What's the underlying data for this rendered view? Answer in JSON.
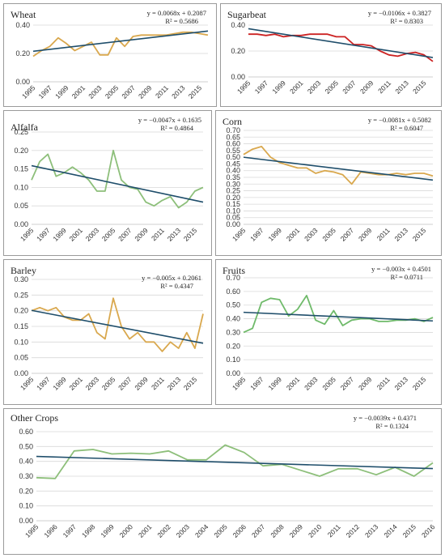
{
  "colors": {
    "trend": "#1f4e6b",
    "wheat": "#d9a84e",
    "sugarbeet": "#cc2222",
    "alfalfa": "#8dbf7a",
    "corn": "#d9a84e",
    "barley": "#d9a84e",
    "fruits": "#6fba6a",
    "other": "#8dbf7a",
    "grid": "#d9d9d9",
    "axis": "#bfbfbf"
  },
  "chart_data": [
    {
      "type": "line",
      "title": "Wheat",
      "equation": "y = 0.0068x + 0.2087",
      "r2": "R² = 0.5686",
      "x": [
        1995,
        1996,
        1997,
        1998,
        1999,
        2000,
        2001,
        2002,
        2003,
        2004,
        2005,
        2006,
        2007,
        2008,
        2009,
        2010,
        2011,
        2012,
        2013,
        2014,
        2015,
        2016
      ],
      "x_tick_labels": [
        "1995",
        "1997",
        "1999",
        "2001",
        "2003",
        "2005",
        "2007",
        "2009",
        "2011",
        "2013",
        "2015"
      ],
      "values": [
        0.18,
        0.22,
        0.25,
        0.31,
        0.27,
        0.22,
        0.25,
        0.28,
        0.19,
        0.19,
        0.31,
        0.25,
        0.32,
        0.33,
        0.33,
        0.33,
        0.33,
        0.34,
        0.35,
        0.35,
        0.34,
        0.33
      ],
      "trend": {
        "slope": 0.0068,
        "intercept": 0.2087
      },
      "ylim": [
        0,
        0.4
      ],
      "yticks": [
        "0.00",
        "0.20",
        "0.40"
      ],
      "ytick_values": [
        0,
        0.2,
        0.4
      ],
      "color": "wheat"
    },
    {
      "type": "line",
      "title": "Sugarbeat",
      "equation": "y = −0.0106x + 0.3827",
      "r2": "R² = 0.8303",
      "x": [
        1995,
        1996,
        1997,
        1998,
        1999,
        2000,
        2001,
        2002,
        2003,
        2004,
        2005,
        2006,
        2007,
        2008,
        2009,
        2010,
        2011,
        2012,
        2013,
        2014,
        2015,
        2016
      ],
      "x_tick_labels": [
        "1995",
        "1997",
        "1999",
        "2001",
        "2003",
        "2005",
        "2007",
        "2009",
        "2011",
        "2013",
        "2015"
      ],
      "values": [
        0.33,
        0.33,
        0.32,
        0.33,
        0.31,
        0.32,
        0.32,
        0.33,
        0.33,
        0.33,
        0.31,
        0.31,
        0.25,
        0.25,
        0.24,
        0.2,
        0.17,
        0.16,
        0.18,
        0.19,
        0.17,
        0.12
      ],
      "trend": {
        "slope": -0.0106,
        "intercept": 0.3827
      },
      "ylim": [
        0,
        0.4
      ],
      "yticks": [
        "0.00",
        "0.20",
        "0.40"
      ],
      "ytick_values": [
        0,
        0.2,
        0.4
      ],
      "color": "sugarbeet"
    },
    {
      "type": "line",
      "title": "Alfalfa",
      "equation": "y = −0.0047x + 0.1635",
      "r2": "R² = 0.4864",
      "x": [
        1995,
        1996,
        1997,
        1998,
        1999,
        2000,
        2001,
        2002,
        2003,
        2004,
        2005,
        2006,
        2007,
        2008,
        2009,
        2010,
        2011,
        2012,
        2013,
        2014,
        2015,
        2016
      ],
      "x_tick_labels": [
        "1995",
        "1997",
        "1999",
        "2001",
        "2003",
        "2005",
        "2007",
        "2009",
        "2011",
        "2013",
        "2015"
      ],
      "values": [
        0.12,
        0.17,
        0.19,
        0.13,
        0.14,
        0.155,
        0.14,
        0.12,
        0.09,
        0.09,
        0.2,
        0.12,
        0.1,
        0.095,
        0.06,
        0.05,
        0.065,
        0.075,
        0.045,
        0.06,
        0.09,
        0.1
      ],
      "trend": {
        "slope": -0.0047,
        "intercept": 0.1635
      },
      "ylim": [
        0,
        0.25
      ],
      "yticks": [
        "0.00",
        "0.05",
        "0.10",
        "0.15",
        "0.20",
        "0.25"
      ],
      "ytick_values": [
        0,
        0.05,
        0.1,
        0.15,
        0.2,
        0.25
      ],
      "color": "alfalfa"
    },
    {
      "type": "line",
      "title": "Corn",
      "equation": "y = −0.0081x + 0.5082",
      "r2": "R² = 0.6047",
      "x": [
        1995,
        1996,
        1997,
        1998,
        1999,
        2000,
        2001,
        2002,
        2003,
        2004,
        2005,
        2006,
        2007,
        2008,
        2009,
        2010,
        2011,
        2012,
        2013,
        2014,
        2015,
        2016
      ],
      "x_tick_labels": [
        "1995",
        "1997",
        "1999",
        "2001",
        "2003",
        "2005",
        "2007",
        "2009",
        "2011",
        "2013",
        "2015"
      ],
      "values": [
        0.52,
        0.56,
        0.58,
        0.5,
        0.46,
        0.44,
        0.42,
        0.42,
        0.38,
        0.4,
        0.39,
        0.37,
        0.3,
        0.39,
        0.38,
        0.37,
        0.37,
        0.38,
        0.37,
        0.38,
        0.38,
        0.36
      ],
      "trend": {
        "slope": -0.0081,
        "intercept": 0.5082
      },
      "ylim": [
        0,
        0.7
      ],
      "yticks": [
        "0.00",
        "0.05",
        "0.10",
        "0.15",
        "0.20",
        "0.25",
        "0.30",
        "0.35",
        "0.40",
        "0.45",
        "0.50",
        "0.55",
        "0.60",
        "0.65",
        "0.70"
      ],
      "ytick_values": [
        0,
        0.05,
        0.1,
        0.15,
        0.2,
        0.25,
        0.3,
        0.35,
        0.4,
        0.45,
        0.5,
        0.55,
        0.6,
        0.65,
        0.7
      ],
      "color": "corn"
    },
    {
      "type": "line",
      "title": "Barley",
      "equation": "y = −0.005x + 0.2061",
      "r2": "R² = 0.4347",
      "x": [
        1995,
        1996,
        1997,
        1998,
        1999,
        2000,
        2001,
        2002,
        2003,
        2004,
        2005,
        2006,
        2007,
        2008,
        2009,
        2010,
        2011,
        2012,
        2013,
        2014,
        2015,
        2016
      ],
      "x_tick_labels": [
        "1995",
        "1997",
        "1999",
        "2001",
        "2003",
        "2005",
        "2007",
        "2009",
        "2011",
        "2013",
        "2015"
      ],
      "values": [
        0.2,
        0.21,
        0.2,
        0.21,
        0.18,
        0.17,
        0.17,
        0.19,
        0.13,
        0.11,
        0.24,
        0.15,
        0.11,
        0.13,
        0.1,
        0.1,
        0.07,
        0.1,
        0.08,
        0.13,
        0.08,
        0.19
      ],
      "trend": {
        "slope": -0.005,
        "intercept": 0.2061
      },
      "ylim": [
        0,
        0.3
      ],
      "yticks": [
        "0.00",
        "0.05",
        "0.10",
        "0.15",
        "0.20",
        "0.25",
        "0.30"
      ],
      "ytick_values": [
        0,
        0.05,
        0.1,
        0.15,
        0.2,
        0.25,
        0.3
      ],
      "color": "barley"
    },
    {
      "type": "line",
      "title": "Fruits",
      "equation": "y = −0.003x + 0.4501",
      "r2": "R² = 0.0711",
      "x": [
        1995,
        1996,
        1997,
        1998,
        1999,
        2000,
        2001,
        2002,
        2003,
        2004,
        2005,
        2006,
        2007,
        2008,
        2009,
        2010,
        2011,
        2012,
        2013,
        2014,
        2015,
        2016
      ],
      "x_tick_labels": [
        "1995",
        "1997",
        "1999",
        "2001",
        "2003",
        "2005",
        "2007",
        "2009",
        "2011",
        "2013",
        "2015"
      ],
      "values": [
        0.3,
        0.33,
        0.52,
        0.55,
        0.54,
        0.42,
        0.47,
        0.57,
        0.39,
        0.36,
        0.46,
        0.35,
        0.39,
        0.4,
        0.4,
        0.38,
        0.38,
        0.39,
        0.39,
        0.4,
        0.38,
        0.41
      ],
      "trend": {
        "slope": -0.003,
        "intercept": 0.4501
      },
      "ylim": [
        0,
        0.7
      ],
      "yticks": [
        "0.00",
        "0.10",
        "0.20",
        "0.30",
        "0.40",
        "0.50",
        "0.60",
        "0.70"
      ],
      "ytick_values": [
        0,
        0.1,
        0.2,
        0.3,
        0.4,
        0.5,
        0.6,
        0.7
      ],
      "color": "fruits"
    },
    {
      "type": "line",
      "title": "Other Crops",
      "equation": "y = −0.0039x + 0.4371",
      "r2": "R² = 0.1324",
      "x": [
        1995,
        1996,
        1997,
        1998,
        1999,
        2000,
        2001,
        2002,
        2003,
        2004,
        2005,
        2006,
        2007,
        2008,
        2009,
        2010,
        2011,
        2012,
        2013,
        2014,
        2015,
        2016
      ],
      "x_tick_labels": [
        "1995",
        "1996",
        "1997",
        "1998",
        "1999",
        "2000",
        "2001",
        "2002",
        "2003",
        "2004",
        "2005",
        "2006",
        "2007",
        "2008",
        "2009",
        "2010",
        "2011",
        "2012",
        "2013",
        "2014",
        "2015",
        "2016"
      ],
      "values": [
        0.29,
        0.285,
        0.47,
        0.48,
        0.45,
        0.455,
        0.45,
        0.47,
        0.41,
        0.41,
        0.51,
        0.46,
        0.37,
        0.38,
        0.34,
        0.3,
        0.35,
        0.35,
        0.31,
        0.36,
        0.3,
        0.39
      ],
      "trend": {
        "slope": -0.0039,
        "intercept": 0.4371
      },
      "ylim": [
        0,
        0.6
      ],
      "yticks": [
        "0.00",
        "0.10",
        "0.20",
        "0.30",
        "0.40",
        "0.50",
        "0.60"
      ],
      "ytick_values": [
        0,
        0.1,
        0.2,
        0.3,
        0.4,
        0.5,
        0.6
      ],
      "color": "other"
    }
  ]
}
